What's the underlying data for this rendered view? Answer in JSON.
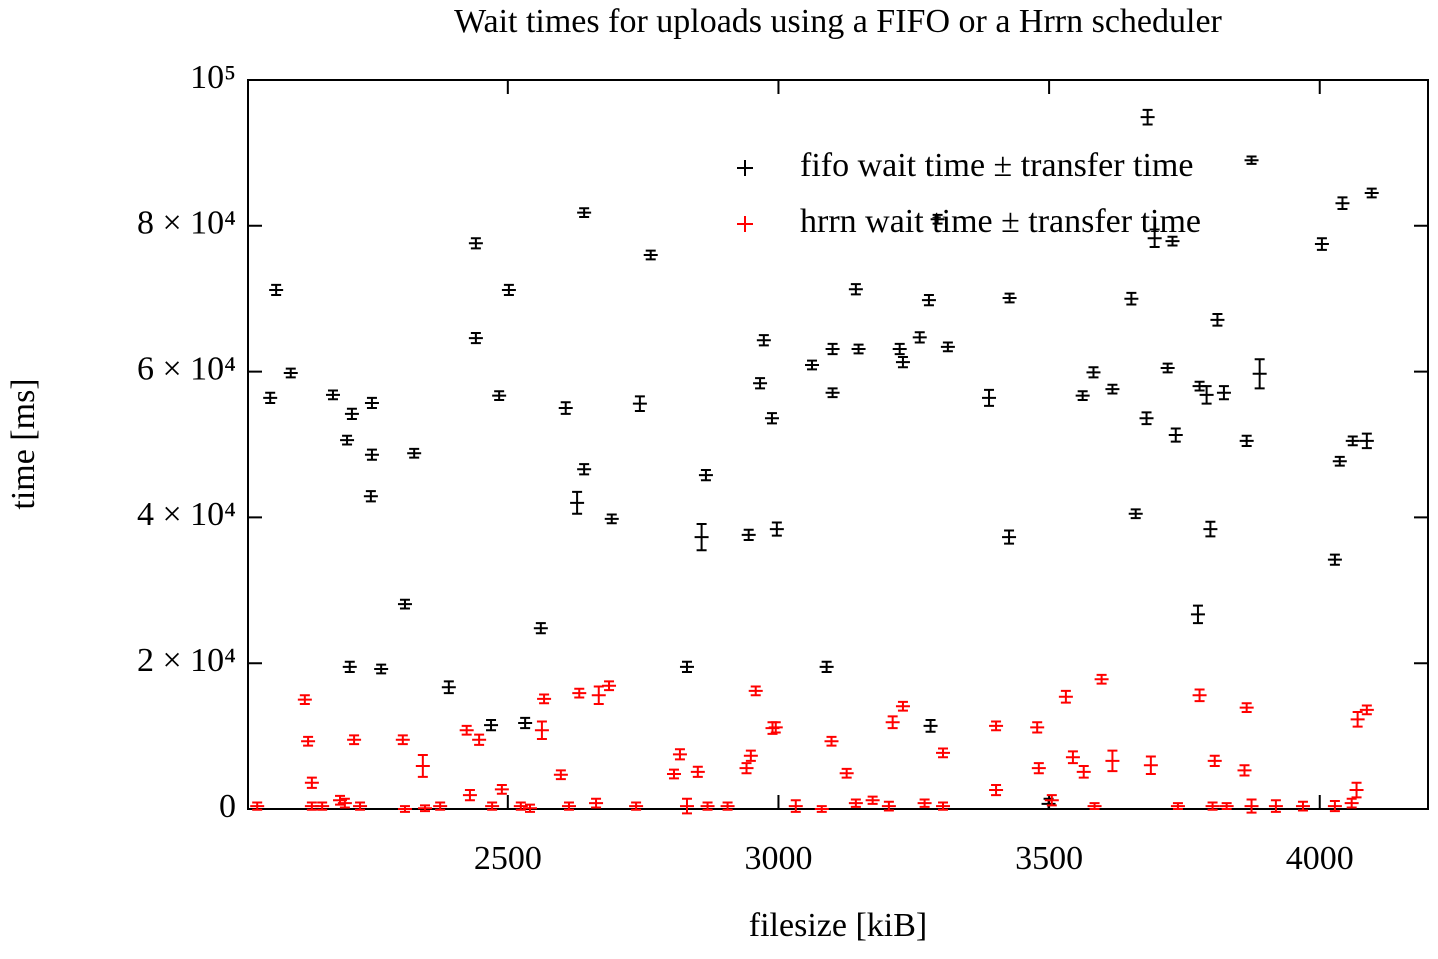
{
  "chart_data": {
    "type": "errorbar",
    "title": "Wait times for uploads using a FIFO or a Hrrn scheduler",
    "x_label": "filesize [kiB]",
    "y_label": "time [ms]",
    "xlim": [
      2020,
      4200
    ],
    "ylim": [
      0,
      100000
    ],
    "xticks": [
      2500,
      3000,
      3500,
      4000
    ],
    "yticks": [
      0,
      {
        "value": 20000,
        "label": "2 × 10⁴"
      },
      {
        "value": 40000,
        "label": "4 × 10⁴"
      },
      {
        "value": 60000,
        "label": "6 × 10⁴"
      },
      {
        "value": 80000,
        "label": "8 × 10⁴"
      },
      {
        "value": 100000,
        "label": "10⁵"
      }
    ],
    "legend": "top right",
    "series": [
      {
        "name": "fifo wait time ± transfer time",
        "color": "#000000",
        "x": [
          2061,
          2072,
          2099,
          2177,
          2203,
          2208,
          2212,
          2249,
          2249,
          2247,
          2266,
          2310,
          2327,
          2391,
          2441,
          2441,
          2469,
          2484,
          2502,
          2532,
          2561,
          2607,
          2628,
          2641,
          2641,
          2692,
          2744,
          2764,
          2831,
          2858,
          2866,
          2945,
          2966,
          2973,
          2988,
          2997,
          3062,
          3089,
          3100,
          3100,
          3143,
          3148,
          3224,
          3230,
          3261,
          3278,
          3281,
          3294,
          3313,
          3389,
          3426,
          3427,
          3499,
          3562,
          3582,
          3617,
          3652,
          3660,
          3680,
          3682,
          3695,
          3719,
          3728,
          3734,
          3775,
          3778,
          3791,
          3798,
          3811,
          3823,
          3865,
          3874,
          3889,
          4004,
          4028,
          4037,
          4042,
          4061,
          4087,
          4096
        ],
        "values": [
          56400,
          71200,
          59800,
          56800,
          50600,
          19500,
          54200,
          55700,
          48600,
          42900,
          19200,
          28100,
          48800,
          16700,
          77600,
          64600,
          11500,
          56700,
          71200,
          11800,
          24800,
          55000,
          42000,
          81800,
          46600,
          39800,
          55600,
          76000,
          19500,
          37300,
          45800,
          37600,
          58400,
          64300,
          53600,
          38400,
          60900,
          19500,
          57100,
          63100,
          71300,
          63100,
          63100,
          61300,
          64700,
          69800,
          11400,
          80900,
          63400,
          56400,
          37300,
          70100,
          700,
          56700,
          59900,
          57600,
          70000,
          40500,
          53600,
          94900,
          78300,
          60500,
          77900,
          51300,
          26700,
          58000,
          56800,
          38400,
          67100,
          57100,
          50500,
          89000,
          59700,
          77500,
          34200,
          47700,
          83100,
          50500,
          50500,
          84500
        ],
        "errors": [
          700,
          700,
          600,
          600,
          600,
          700,
          700,
          700,
          700,
          700,
          600,
          600,
          600,
          800,
          700,
          700,
          700,
          600,
          700,
          700,
          700,
          800,
          1500,
          600,
          700,
          600,
          1000,
          600,
          700,
          1800,
          700,
          700,
          700,
          700,
          700,
          900,
          600,
          700,
          600,
          700,
          700,
          600,
          700,
          700,
          700,
          700,
          800,
          600,
          600,
          1100,
          900,
          600,
          700,
          600,
          700,
          600,
          800,
          600,
          800,
          1000,
          1200,
          600,
          600,
          900,
          1200,
          600,
          1200,
          1000,
          800,
          900,
          700,
          500,
          2000,
          800,
          700,
          600,
          800,
          600,
          1000,
          600
        ]
      },
      {
        "name": "hrrn wait time ± transfer time",
        "color": "#ff0000",
        "x": [
          2037,
          2125,
          2131,
          2138,
          2138,
          2157,
          2190,
          2199,
          2216,
          2227,
          2306,
          2310,
          2343,
          2347,
          2375,
          2424,
          2430,
          2447,
          2471,
          2489,
          2524,
          2541,
          2563,
          2567,
          2598,
          2613,
          2632,
          2663,
          2668,
          2687,
          2737,
          2807,
          2818,
          2831,
          2851,
          2869,
          2906,
          2941,
          2949,
          2958,
          2989,
          2995,
          3032,
          3080,
          3098,
          3126,
          3143,
          3174,
          3204,
          3211,
          3230,
          3270,
          3304,
          3304,
          3402,
          3402,
          3478,
          3481,
          3505,
          3531,
          3544,
          3564,
          3584,
          3597,
          3617,
          3688,
          3738,
          3778,
          3802,
          3806,
          3828,
          3861,
          3865,
          3874,
          3919,
          3969,
          4028,
          4059,
          4068,
          4070,
          4087
        ],
        "values": [
          400,
          15000,
          9300,
          3600,
          400,
          400,
          1200,
          800,
          9500,
          400,
          9500,
          0,
          5900,
          100,
          400,
          10800,
          1900,
          9500,
          400,
          2700,
          400,
          100,
          10800,
          15100,
          4700,
          400,
          15900,
          800,
          15600,
          16900,
          400,
          4800,
          7500,
          400,
          5100,
          400,
          400,
          5600,
          7300,
          16200,
          11100,
          11200,
          400,
          0,
          9300,
          4900,
          800,
          1200,
          400,
          11900,
          14100,
          800,
          400,
          7700,
          11400,
          2600,
          11200,
          5600,
          1200,
          15400,
          7100,
          5100,
          400,
          17800,
          6600,
          6000,
          400,
          15600,
          400,
          6600,
          400,
          5300,
          13900,
          400,
          400,
          400,
          400,
          800,
          2600,
          12300,
          13600
        ],
        "errors": [
          500,
          600,
          600,
          700,
          500,
          500,
          600,
          600,
          600,
          500,
          600,
          400,
          1500,
          400,
          500,
          600,
          700,
          700,
          500,
          600,
          500,
          500,
          1200,
          600,
          600,
          500,
          600,
          600,
          1200,
          600,
          500,
          600,
          700,
          1000,
          700,
          500,
          500,
          700,
          700,
          600,
          800,
          700,
          800,
          400,
          600,
          600,
          500,
          500,
          600,
          800,
          600,
          500,
          500,
          600,
          600,
          700,
          700,
          700,
          700,
          800,
          800,
          800,
          400,
          600,
          1400,
          1200,
          400,
          800,
          500,
          700,
          400,
          700,
          600,
          900,
          800,
          600,
          700,
          600,
          1000,
          1000,
          600
        ]
      }
    ]
  }
}
